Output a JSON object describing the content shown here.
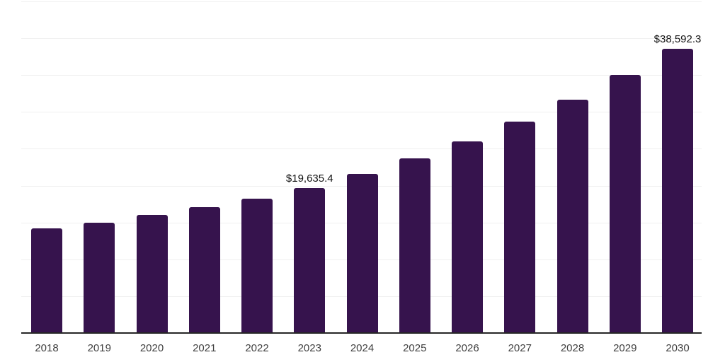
{
  "chart_data": {
    "type": "bar",
    "title": "",
    "xlabel": "",
    "ylabel": "",
    "legend": "none",
    "grid": "horizontal",
    "categories": [
      "2018",
      "2019",
      "2020",
      "2021",
      "2022",
      "2023",
      "2024",
      "2025",
      "2026",
      "2027",
      "2028",
      "2029",
      "2030"
    ],
    "values": [
      14240,
      14940,
      16060,
      17040,
      18220,
      19635.4,
      21600,
      23700,
      26000,
      28700,
      31700,
      35000,
      38592.3
    ],
    "data_labels": [
      {
        "category": "2023",
        "text": "$19,635.4"
      },
      {
        "category": "2030",
        "text": "$38,592.3"
      }
    ],
    "ylim": [
      0,
      45000
    ],
    "gridline_step": 5000,
    "y_tick_labels_visible": false,
    "colors": {
      "bar": "#36134d",
      "axis_line": "#262626",
      "gridline": "#f0f0f0",
      "tick_label": "#404040",
      "data_label": "#141414",
      "background": "#ffffff"
    }
  }
}
